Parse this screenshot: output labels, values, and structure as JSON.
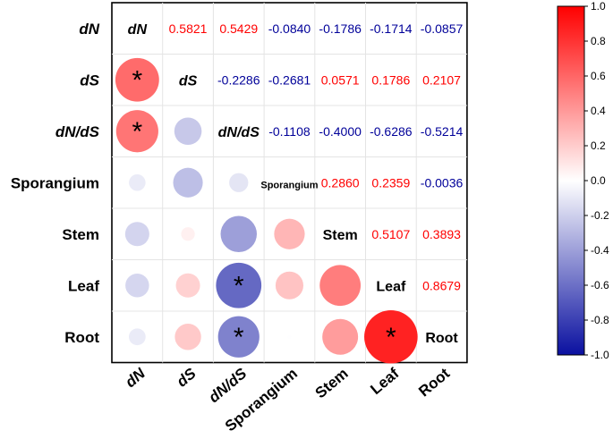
{
  "chart_data": {
    "type": "correlogram",
    "variables": [
      "dN",
      "dS",
      "dN/dS",
      "Sporangium",
      "Stem",
      "Leaf",
      "Root"
    ],
    "italic_variables": [
      "dN",
      "dS",
      "dN/dS"
    ],
    "matrix": [
      [
        1.0,
        0.5821,
        0.5429,
        -0.084,
        -0.1786,
        -0.1714,
        -0.0857
      ],
      [
        0.5821,
        1.0,
        -0.2286,
        -0.2681,
        0.0571,
        0.1786,
        0.2107
      ],
      [
        0.5429,
        -0.2286,
        1.0,
        -0.1108,
        -0.4,
        -0.6286,
        -0.5214
      ],
      [
        -0.084,
        -0.2681,
        -0.1108,
        1.0,
        0.286,
        0.2359,
        -0.0036
      ],
      [
        -0.1786,
        0.0571,
        -0.4,
        0.286,
        1.0,
        0.5107,
        0.3893
      ],
      [
        -0.1714,
        0.1786,
        -0.6286,
        0.2359,
        0.5107,
        1.0,
        0.8679
      ],
      [
        -0.0857,
        0.2107,
        -0.5214,
        -0.0036,
        0.3893,
        0.8679,
        1.0
      ]
    ],
    "upper_triangle_text": [
      [
        "",
        "0.5821",
        "0.5429",
        "-0.0840",
        "-0.1786",
        "-0.1714",
        "-0.0857"
      ],
      [
        "",
        "",
        "-0.2286",
        "-0.2681",
        "0.0571",
        "0.1786",
        "0.2107"
      ],
      [
        "",
        "",
        "",
        "-0.1108",
        "-0.4000",
        "-0.6286",
        "-0.5214"
      ],
      [
        "",
        "",
        "",
        "",
        "0.2860",
        "0.2359",
        "-0.0036"
      ],
      [
        "",
        "",
        "",
        "",
        "",
        "0.5107",
        "0.3893"
      ],
      [
        "",
        "",
        "",
        "",
        "",
        "",
        "0.8679"
      ],
      [
        "",
        "",
        "",
        "",
        "",
        "",
        ""
      ]
    ],
    "significance_marker": "*",
    "significant_cells": [
      [
        1,
        0
      ],
      [
        2,
        0
      ],
      [
        5,
        2
      ],
      [
        6,
        2
      ],
      [
        6,
        5
      ]
    ],
    "lower_triangle": "circles",
    "colorbar": {
      "min": -1.0,
      "max": 1.0,
      "ticks": [
        "1.0",
        "0.8",
        "0.6",
        "0.4",
        "0.2",
        "0.0",
        "-0.2",
        "-0.4",
        "-0.6",
        "-0.8",
        "-1.0"
      ],
      "tick_values": [
        1.0,
        0.8,
        0.6,
        0.4,
        0.2,
        0.0,
        -0.2,
        -0.4,
        -0.6,
        -0.8,
        -1.0
      ],
      "colors": {
        "negative": "#0a10a0",
        "neutral": "#ffffff",
        "positive": "#ff0000"
      }
    },
    "text_colors": {
      "positive": "#ff0000",
      "negative": "#000099",
      "label": "#000000"
    }
  }
}
